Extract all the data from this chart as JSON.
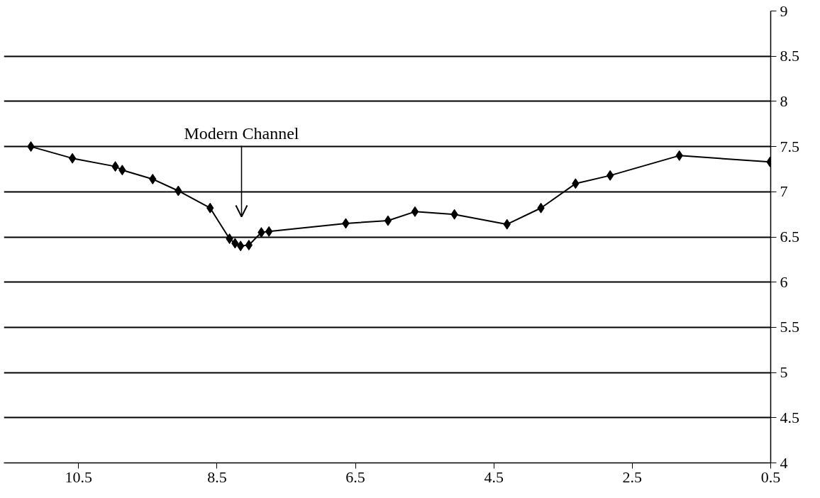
{
  "chart_data": {
    "type": "line",
    "x": [
      11.19,
      10.59,
      9.97,
      9.87,
      9.43,
      9.06,
      8.6,
      8.32,
      8.24,
      8.16,
      8.04,
      7.86,
      7.75,
      6.64,
      6.03,
      5.64,
      5.07,
      4.31,
      3.82,
      3.32,
      2.82,
      1.82,
      0.51
    ],
    "series": [
      {
        "color": "#000000",
        "values": [
          7.5,
          7.37,
          7.28,
          7.24,
          7.14,
          7.01,
          6.82,
          6.48,
          6.43,
          6.4,
          6.41,
          6.55,
          6.56,
          6.65,
          6.68,
          6.78,
          6.75,
          6.64,
          6.82,
          7.09,
          7.18,
          7.4,
          7.33
        ]
      }
    ],
    "xlim": [
      11.58,
      0.5
    ],
    "xticks": [
      10.5,
      8.5,
      6.5,
      4.5,
      2.5,
      0.5
    ],
    "ylim": [
      4,
      9
    ],
    "yticks": [
      4,
      4.5,
      5,
      5.5,
      6,
      6.5,
      7,
      7.5,
      8,
      8.5,
      9
    ],
    "grid": "y",
    "marker": "diamond",
    "line_style": "solid",
    "annotations": [
      "Modern Channel"
    ]
  }
}
